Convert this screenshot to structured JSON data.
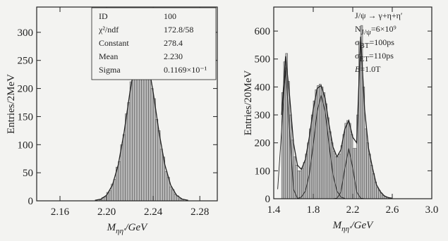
{
  "chart_data": [
    {
      "type": "histogram",
      "ylabel": "Entries/2MeV",
      "xlabel": [
        {
          "t": "M"
        },
        {
          "t": "ηη′",
          "sub": true
        },
        {
          "t": "/GeV"
        }
      ],
      "xlim": [
        2.14,
        2.295
      ],
      "ylim": [
        0,
        345
      ],
      "xticks": [
        2.16,
        {
          "value": 2.2,
          "label": "2.20"
        },
        2.24,
        2.28
      ],
      "yticks": [
        0,
        50,
        100,
        150,
        200,
        250,
        300
      ],
      "color": "#b8b8b8",
      "bins": [
        2.194,
        2.196,
        2.198,
        2.2,
        2.202,
        2.204,
        2.206,
        2.208,
        2.21,
        2.212,
        2.214,
        2.216,
        2.218,
        2.22,
        2.222,
        2.224,
        2.226,
        2.228,
        2.23,
        2.232,
        2.234,
        2.236,
        2.238,
        2.24,
        2.242,
        2.244,
        2.246,
        2.248,
        2.25,
        2.252,
        2.254,
        2.256,
        2.258,
        2.26,
        2.262,
        2.264,
        2.266
      ],
      "values": [
        2,
        6,
        7,
        15,
        18,
        30,
        38,
        60,
        70,
        100,
        118,
        155,
        175,
        212,
        228,
        260,
        275,
        300,
        310,
        265,
        250,
        235,
        200,
        182,
        145,
        125,
        92,
        78,
        52,
        42,
        25,
        20,
        12,
        9,
        4,
        3
      ],
      "curves": [
        {
          "x": [
            2.19,
            2.195,
            2.2,
            2.205,
            2.21,
            2.215,
            2.22,
            2.225,
            2.23,
            2.235,
            2.24,
            2.245,
            2.25,
            2.255,
            2.26,
            2.265,
            2.27
          ],
          "values": [
            1,
            3,
            10,
            28,
            64,
            122,
            193,
            254,
            278,
            254,
            193,
            122,
            64,
            28,
            10,
            3,
            1
          ]
        }
      ],
      "stats": [
        [
          "ID",
          "100"
        ],
        [
          "χ²/ndf",
          "172.8/58"
        ],
        [
          "Constant",
          "278.4"
        ],
        [
          "Mean",
          "2.230"
        ],
        [
          "Sigma",
          "0.1169×10⁻¹"
        ]
      ]
    },
    {
      "type": "histogram",
      "ylabel": "Entries/20MeV",
      "xlabel": [
        {
          "t": "M"
        },
        {
          "t": "ηη′",
          "sub": true
        },
        {
          "t": "/GeV"
        }
      ],
      "xlim": [
        1.4,
        3.0
      ],
      "ylim": [
        0,
        686
      ],
      "xticks": [
        1.4,
        1.8,
        2.2,
        2.6,
        {
          "value": 3.0,
          "label": "3.0"
        }
      ],
      "yticks": [
        0,
        100,
        200,
        300,
        400,
        500,
        600
      ],
      "color": "#b8b8b8",
      "bins": [
        1.48,
        1.5,
        1.52,
        1.54,
        1.56,
        1.58,
        1.6,
        1.62,
        1.64,
        1.66,
        1.68,
        1.7,
        1.72,
        1.74,
        1.76,
        1.78,
        1.8,
        1.82,
        1.84,
        1.86,
        1.88,
        1.9,
        1.92,
        1.94,
        1.96,
        1.98,
        2.0,
        2.02,
        2.04,
        2.06,
        2.08,
        2.1,
        2.12,
        2.14,
        2.16,
        2.18,
        2.2,
        2.22,
        2.24,
        2.26,
        2.28,
        2.3,
        2.32,
        2.34,
        2.36,
        2.38,
        2.4,
        2.42,
        2.44,
        2.46,
        2.48,
        2.5,
        2.52,
        2.54,
        2.56,
        2.58,
        2.6
      ],
      "values": [
        380,
        490,
        520,
        420,
        300,
        210,
        150,
        120,
        100,
        100,
        110,
        130,
        160,
        200,
        250,
        300,
        350,
        390,
        405,
        410,
        400,
        380,
        340,
        290,
        240,
        200,
        170,
        150,
        150,
        160,
        190,
        230,
        270,
        280,
        270,
        230,
        180,
        180,
        300,
        560,
        620,
        400,
        250,
        200,
        160,
        120,
        90,
        60,
        40,
        30,
        20,
        12,
        8,
        5,
        3,
        2
      ],
      "curves": [
        {
          "x": [
            1.48,
            1.52,
            1.56,
            1.6,
            1.64,
            1.68,
            1.72,
            1.76,
            1.8,
            1.84,
            1.88,
            1.92,
            1.96,
            2.0,
            2.04,
            2.08,
            2.12,
            2.16,
            2.2,
            2.24,
            2.28,
            2.32,
            2.36,
            2.4,
            2.44,
            2.48,
            2.52,
            2.56,
            2.6
          ],
          "values": [
            300,
            510,
            370,
            200,
            120,
            105,
            140,
            220,
            320,
            395,
            405,
            360,
            265,
            185,
            150,
            175,
            250,
            280,
            220,
            200,
            580,
            320,
            180,
            110,
            50,
            25,
            10,
            4,
            2
          ]
        },
        {
          "x": [
            1.44,
            1.48,
            1.52,
            1.56,
            1.6,
            1.64,
            1.68
          ],
          "values": [
            34,
            246,
            470,
            246,
            34,
            1,
            0
          ]
        },
        {
          "x": [
            1.64,
            1.68,
            1.72,
            1.76,
            1.8,
            1.84,
            1.88,
            1.92,
            1.96,
            2.0,
            2.04,
            2.08,
            2.12
          ],
          "values": [
            1,
            6,
            27,
            86,
            193,
            313,
            370,
            313,
            193,
            86,
            27,
            6,
            1
          ]
        },
        {
          "x": [
            2.0,
            2.04,
            2.08,
            2.12,
            2.16,
            2.2,
            2.24,
            2.28,
            2.32
          ],
          "values": [
            0,
            2,
            24,
            109,
            180,
            109,
            24,
            2,
            0
          ]
        }
      ],
      "annotations": [
        [
          {
            "t": "J/ψ → γ+η+η′"
          }
        ],
        [
          {
            "t": "N"
          },
          {
            "t": "J/ψ",
            "sub": true
          },
          {
            "t": "=6×10⁹"
          }
        ],
        [
          {
            "t": "σ"
          },
          {
            "t": "BT",
            "sub": true
          },
          {
            "t": "=100ps"
          }
        ],
        [
          {
            "t": "σ"
          },
          {
            "t": "ET",
            "sub": true
          },
          {
            "t": "=110ps"
          }
        ],
        [
          {
            "t": "B",
            "it": true
          },
          {
            "t": "=1.0T"
          }
        ]
      ]
    }
  ]
}
